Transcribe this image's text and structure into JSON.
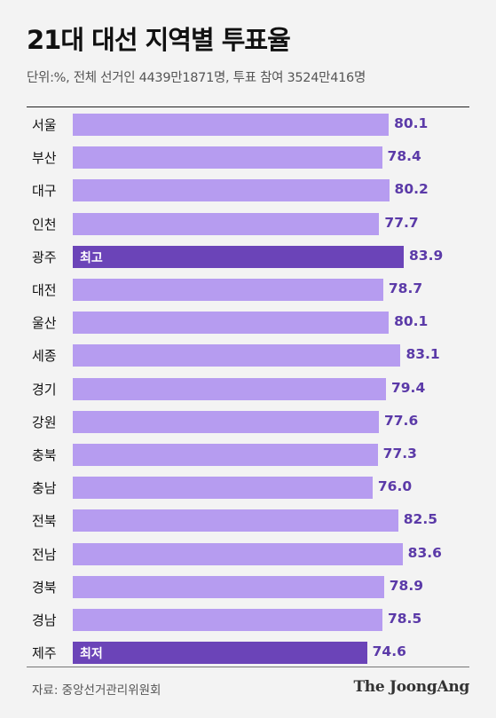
{
  "title": "21대 대선 지역별 투표율",
  "subtitle": "단위:%, 전체 선거인 4439만1871명, 투표 참여 3524만416명",
  "source": "자료: 중앙선거관리위원회",
  "brand": "The JoongAng",
  "colors": {
    "bar": "#b69cf0",
    "highlight": "#6b44b8",
    "value": "#5b3aa8"
  },
  "chart_data": {
    "type": "bar",
    "orientation": "horizontal",
    "title": "21대 대선 지역별 투표율",
    "categories": [
      "서울",
      "부산",
      "대구",
      "인천",
      "광주",
      "대전",
      "울산",
      "세종",
      "경기",
      "강원",
      "충북",
      "충남",
      "전북",
      "전남",
      "경북",
      "경남",
      "제주"
    ],
    "values": [
      80.1,
      78.4,
      80.2,
      77.7,
      83.9,
      78.7,
      80.1,
      83.1,
      79.4,
      77.6,
      77.3,
      76.0,
      82.5,
      83.6,
      78.9,
      78.5,
      74.6
    ],
    "value_labels": [
      "80.1",
      "78.4",
      "80.2",
      "77.7",
      "83.9",
      "78.7",
      "80.1",
      "83.1",
      "79.4",
      "77.6",
      "77.3",
      "76.0",
      "82.5",
      "83.6",
      "78.9",
      "78.5",
      "74.6"
    ],
    "highlights": [
      {
        "index": 4,
        "label": "최고"
      },
      {
        "index": 16,
        "label": "최저"
      }
    ],
    "xlabel": "",
    "ylabel": ""
  }
}
